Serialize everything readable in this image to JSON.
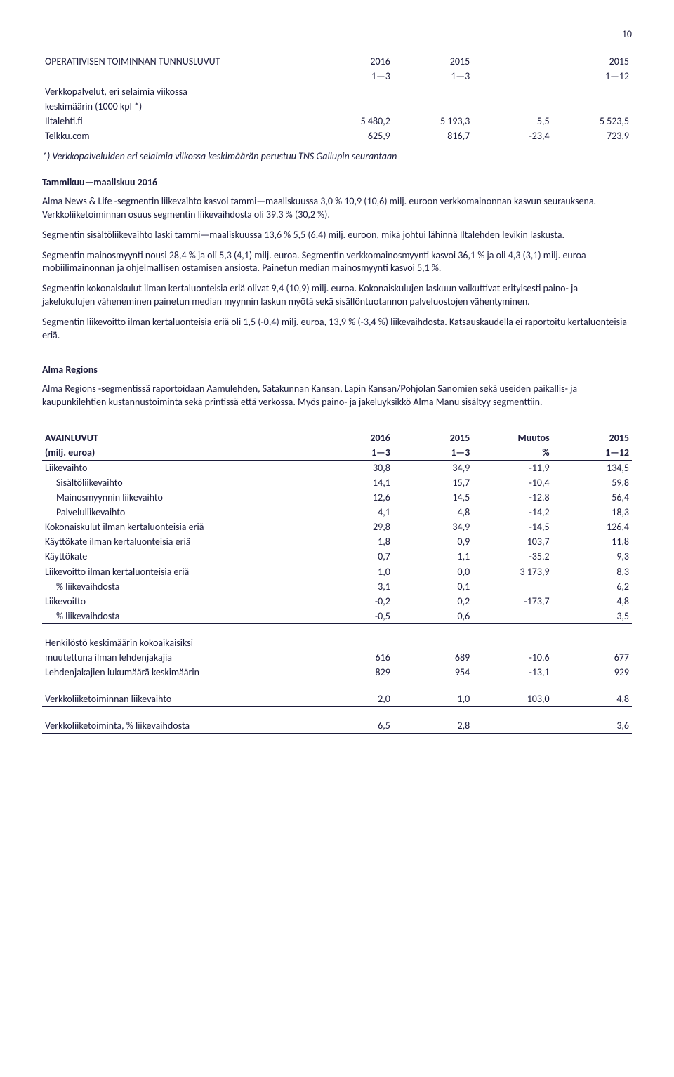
{
  "page_number": "10",
  "operTable": {
    "headerRow1": [
      "OPERATIIVISEN TOIMINNAN TUNNUSLUVUT",
      "2016",
      "2015",
      "",
      "2015"
    ],
    "headerRow2": [
      "",
      "1—3",
      "1—3",
      "",
      "1—12"
    ],
    "rows": [
      {
        "label": "Verkkopalvelut, eri selaimia viikossa",
        "c1": "",
        "c2": "",
        "c3": "",
        "c4": ""
      },
      {
        "label": "keskimäärin (1000 kpl *)",
        "c1": "",
        "c2": "",
        "c3": "",
        "c4": ""
      },
      {
        "label": "Iltalehti.fi",
        "c1": "5 480,2",
        "c2": "5 193,3",
        "c3": "5,5",
        "c4": "5 523,5"
      },
      {
        "label": "Telkku.com",
        "c1": "625,9",
        "c2": "816,7",
        "c3": "-23,4",
        "c4": "723,9"
      }
    ],
    "footnote": "*) Verkkopalveluiden eri selaimia viikossa keskimäärän perustuu TNS Gallupin seurantaan"
  },
  "tammikuu_heading": "Tammikuu—maaliskuu 2016",
  "paragraphs": [
    "Alma News & Life -segmentin liikevaihto kasvoi tammi—maaliskuussa 3,0 % 10,9 (10,6) milj. euroon verkkomainonnan kasvun seurauksena. Verkkoliiketoiminnan osuus segmentin liikevaihdosta oli 39,3 % (30,2 %).",
    "Segmentin sisältöliikevaihto laski tammi—maaliskuussa 13,6 % 5,5 (6,4) milj. euroon, mikä johtui lähinnä Iltalehden levikin laskusta.",
    "Segmentin mainosmyynti nousi  28,4 % ja oli 5,3 (4,1) milj. euroa. Segmentin verkkomainosmyynti kasvoi 36,1 % ja oli 4,3 (3,1) milj. euroa  mobiilimainonnan ja ohjelmallisen ostamisen ansiosta. Painetun median mainosmyynti kasvoi  5,1 %.",
    "Segmentin kokonaiskulut ilman kertaluonteisia eriä olivat 9,4 (10,9) milj. euroa. Kokonaiskulujen laskuun vaikuttivat erityisesti paino- ja jakelukulujen väheneminen painetun median myynnin laskun myötä sekä sisällöntuotannon palveluostojen vähentyminen.",
    "Segmentin liikevoitto ilman kertaluonteisia eriä oli 1,5 (-0,4) milj. euroa, 13,9 % (-3,4 %) liikevaihdosta. Katsauskaudella ei raportoitu kertaluonteisia eriä."
  ],
  "alma_heading": "Alma Regions",
  "alma_intro": "Alma Regions -segmentissä raportoidaan Aamulehden, Satakunnan Kansan, Lapin Kansan/Pohjolan Sanomien sekä useiden paikallis- ja kaupunkilehtien kustannustoiminta sekä printissä että verkossa. Myös paino- ja jakeluyksikkö Alma Manu sisältyy segmenttiin.",
  "avainTable": {
    "headerRow1": [
      "AVAINLUVUT",
      "2016",
      "2015",
      "Muutos",
      "2015"
    ],
    "headerRow2": [
      "(milj. euroa)",
      "1—3",
      "1—3",
      "%",
      "1—12"
    ],
    "rows": [
      {
        "label": "Liikevaihto",
        "indent": false,
        "c1": "30,8",
        "c2": "34,9",
        "c3": "-11,9",
        "c4": "134,5"
      },
      {
        "label": "Sisältöliikevaihto",
        "indent": true,
        "c1": "14,1",
        "c2": "15,7",
        "c3": "-10,4",
        "c4": "59,8"
      },
      {
        "label": "Mainosmyynnin liikevaihto",
        "indent": true,
        "c1": "12,6",
        "c2": "14,5",
        "c3": "-12,8",
        "c4": "56,4"
      },
      {
        "label": "Palveluliikevaihto",
        "indent": true,
        "c1": "4,1",
        "c2": "4,8",
        "c3": "-14,2",
        "c4": "18,3"
      },
      {
        "label": "Kokonaiskulut ilman kertaluonteisia eriä",
        "indent": false,
        "c1": "29,8",
        "c2": "34,9",
        "c3": "-14,5",
        "c4": "126,4"
      },
      {
        "label": "Käyttökate ilman kertaluonteisia eriä",
        "indent": false,
        "c1": "1,8",
        "c2": "0,9",
        "c3": "103,7",
        "c4": "11,8"
      },
      {
        "label": "Käyttökate",
        "indent": false,
        "c1": "0,7",
        "c2": "1,1",
        "c3": "-35,2",
        "c4": "9,3",
        "underline": true
      },
      {
        "label": "Liikevoitto ilman kertaluonteisia eriä",
        "indent": false,
        "c1": "1,0",
        "c2": "0,0",
        "c3": "3 173,9",
        "c4": "8,3"
      },
      {
        "label": "% liikevaihdosta",
        "indent": true,
        "c1": "3,1",
        "c2": "0,1",
        "c3": "",
        "c4": "6,2"
      },
      {
        "label": "Liikevoitto",
        "indent": false,
        "c1": "-0,2",
        "c2": "0,2",
        "c3": "-173,7",
        "c4": "4,8"
      },
      {
        "label": "% liikevaihdosta",
        "indent": true,
        "c1": "-0,5",
        "c2": "0,6",
        "c3": "",
        "c4": "3,5",
        "underline": true
      }
    ],
    "blockRows": [
      {
        "label": "Henkilöstö keskimäärin kokoaikaisiksi",
        "c1": "",
        "c2": "",
        "c3": "",
        "c4": ""
      },
      {
        "label": "muutettuna ilman lehdenjakajia",
        "c1": "616",
        "c2": "689",
        "c3": "-10,6",
        "c4": "677"
      },
      {
        "label": "Lehdenjakajien lukumäärä keskimäärin",
        "c1": "829",
        "c2": "954",
        "c3": "-13,1",
        "c4": "929",
        "underline": true
      }
    ],
    "singleRows": [
      {
        "label": "Verkkoliiketoiminnan liikevaihto",
        "c1": "2,0",
        "c2": "1,0",
        "c3": "103,0",
        "c4": "4,8",
        "underline": true
      },
      {
        "label": "Verkkoliiketoiminta, % liikevaihdosta",
        "c1": "6,5",
        "c2": "2,8",
        "c3": "",
        "c4": "3,6",
        "underline": true
      }
    ]
  }
}
